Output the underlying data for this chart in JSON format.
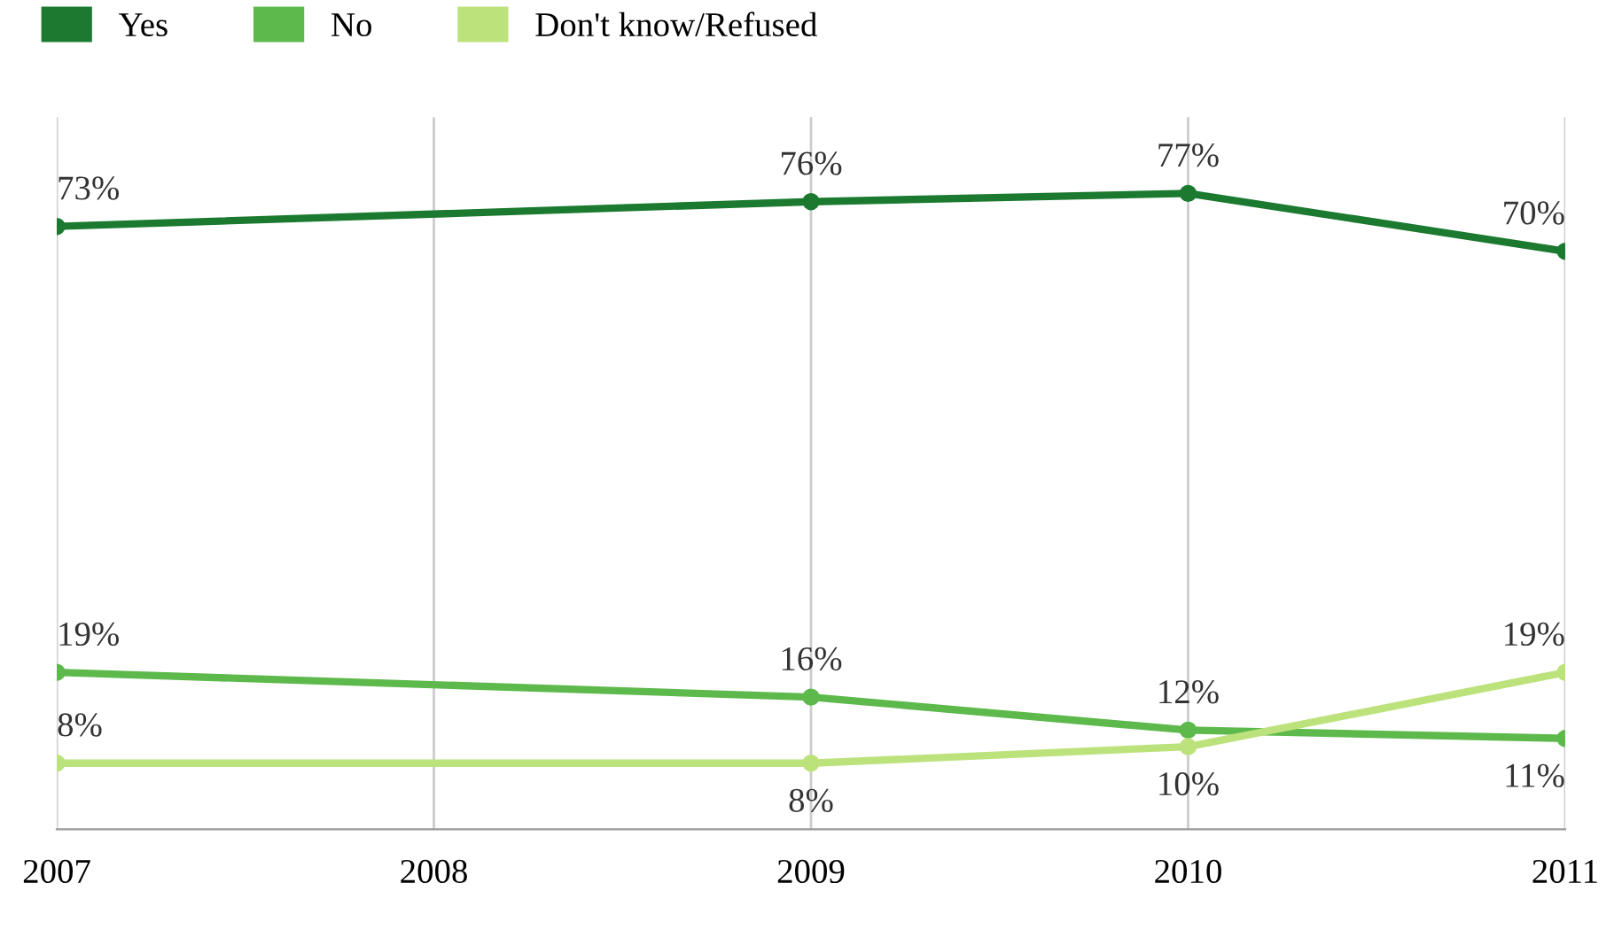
{
  "chart_data": {
    "type": "line",
    "xlim": [
      2007,
      2011
    ],
    "xticks": [
      2007,
      2008,
      2009,
      2010,
      2011
    ],
    "series": [
      {
        "name": "Yes",
        "color": "#1b7a2f",
        "x": [
          2007,
          2009,
          2010,
          2011
        ],
        "values": [
          73,
          76,
          77,
          70
        ],
        "value_labels": [
          "73%",
          "76%",
          "77%",
          "70%"
        ]
      },
      {
        "name": "No",
        "color": "#5db94b",
        "x": [
          2007,
          2009,
          2010,
          2011
        ],
        "values": [
          19,
          16,
          12,
          11
        ],
        "value_labels": [
          "19%",
          "16%",
          "12%",
          "11%"
        ]
      },
      {
        "name": "Don't know/Refused",
        "color": "#bce27c",
        "x": [
          2007,
          2009,
          2010,
          2011
        ],
        "values": [
          8,
          8,
          10,
          19
        ],
        "value_labels": [
          "8%",
          "8%",
          "10%",
          "19%"
        ]
      }
    ],
    "grid": "x",
    "legend": "top left",
    "marker": "circle",
    "line_style": "solid",
    "tick_labels": "x"
  }
}
